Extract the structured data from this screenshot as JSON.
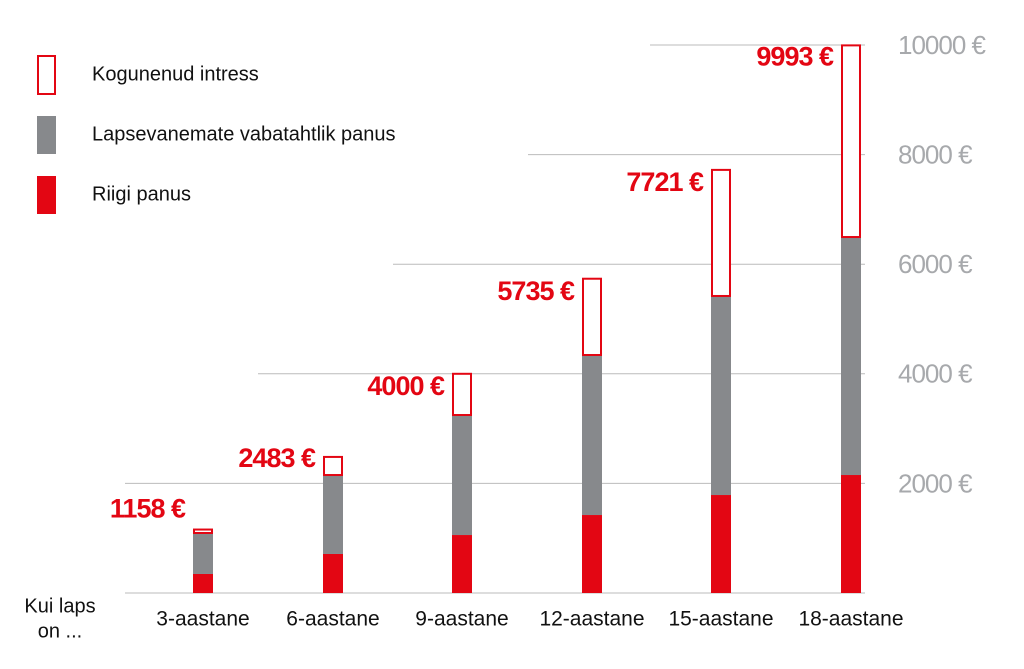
{
  "chart_data": {
    "type": "stacked_bar",
    "x_label": [
      "Kui laps",
      "on ..."
    ],
    "categories": [
      "3-aastane",
      "6-aastane",
      "9-aastane",
      "12-aastane",
      "15-aastane",
      "18-aastane"
    ],
    "series": [
      {
        "name": "Riigi panus",
        "color": "#e30613",
        "values": [
          347,
          712,
          1058,
          1423,
          1788,
          2153
        ]
      },
      {
        "name": "Lapsevanemate vabatahtlik panus",
        "color": "#87898c",
        "values": [
          748,
          1441,
          2190,
          2920,
          3632,
          4343
        ]
      },
      {
        "name": "Kogunenud intress",
        "color": "#e30613",
        "outline": true,
        "values": [
          63,
          330,
          752,
          1392,
          2301,
          3497
        ]
      }
    ],
    "total_labels": [
      "1158 €",
      "2483 €",
      "4000 €",
      "5735 €",
      "7721 €",
      "9993 €"
    ],
    "ylim": [
      0,
      10000
    ],
    "yticks": [
      {
        "value": 2000,
        "label": "2000 €"
      },
      {
        "value": 4000,
        "label": "4000 €"
      },
      {
        "value": 6000,
        "label": "6000 €"
      },
      {
        "value": 8000,
        "label": "8000 €"
      },
      {
        "value": 10000,
        "label": "10000 €"
      }
    ],
    "grid": true,
    "legend": "top-left"
  }
}
